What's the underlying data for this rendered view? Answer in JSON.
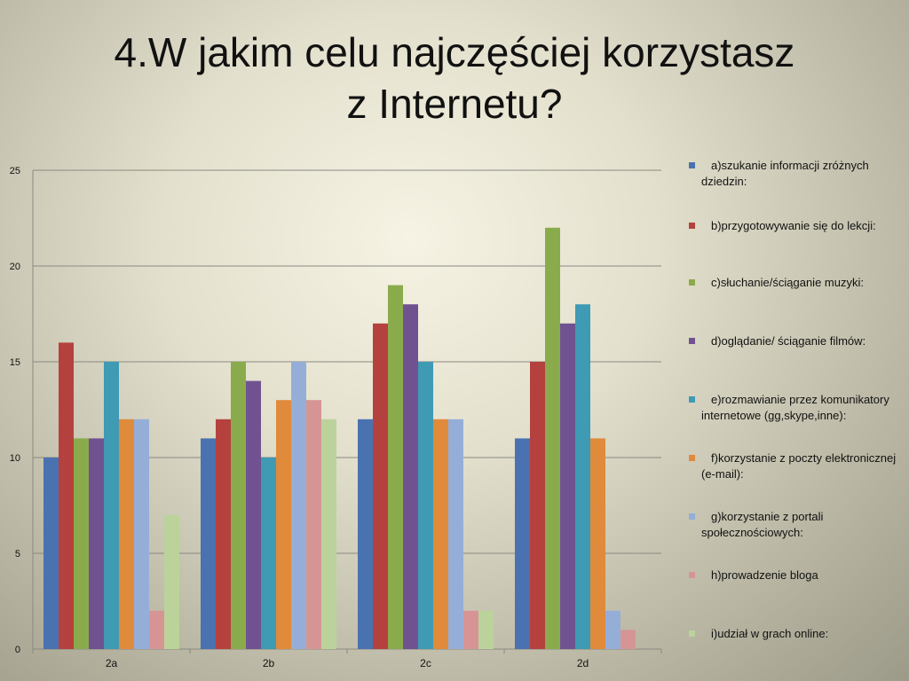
{
  "slide": {
    "title_line1": "4.W jakim celu najczęściej korzystasz",
    "title_line2": "z Internetu?"
  },
  "chart_data": {
    "type": "bar",
    "categories": [
      "2a",
      "2b",
      "2c",
      "2d"
    ],
    "ylim": [
      0,
      25
    ],
    "yticks": [
      0,
      5,
      10,
      15,
      20,
      25
    ],
    "grid": true,
    "legend_position": "right",
    "series": [
      {
        "name": "a)szukanie informacji zróżnych dziedzin:",
        "color": "#4a72b0",
        "values": [
          10,
          11,
          12,
          11
        ]
      },
      {
        "name": "b)przygotowywanie się do lekcji:",
        "color": "#b5413e",
        "values": [
          16,
          12,
          17,
          15
        ]
      },
      {
        "name": "c)słuchanie/ściąganie muzyki:",
        "color": "#8aab4c",
        "values": [
          11,
          15,
          19,
          22
        ]
      },
      {
        "name": "d)oglądanie/ ściąganie filmów:",
        "color": "#705290",
        "values": [
          11,
          14,
          18,
          17
        ]
      },
      {
        "name": "e)rozmawianie przez komunikatory internetowe (gg,skype,inne):",
        "color": "#3f9ab3",
        "values": [
          15,
          10,
          15,
          18
        ]
      },
      {
        "name": "f)korzystanie z poczty elektronicznej (e-mail):",
        "color": "#e08a3c",
        "values": [
          12,
          13,
          12,
          11
        ]
      },
      {
        "name": "g)korzystanie z portali społecznościowych:",
        "color": "#95aed8",
        "values": [
          12,
          15,
          12,
          2
        ]
      },
      {
        "name": "h)prowadzenie bloga",
        "color": "#d69594",
        "values": [
          2,
          13,
          2,
          1
        ]
      },
      {
        "name": "i)udział w grach online:",
        "color": "#bbd39a",
        "values": [
          7,
          12,
          2,
          0
        ]
      }
    ]
  }
}
